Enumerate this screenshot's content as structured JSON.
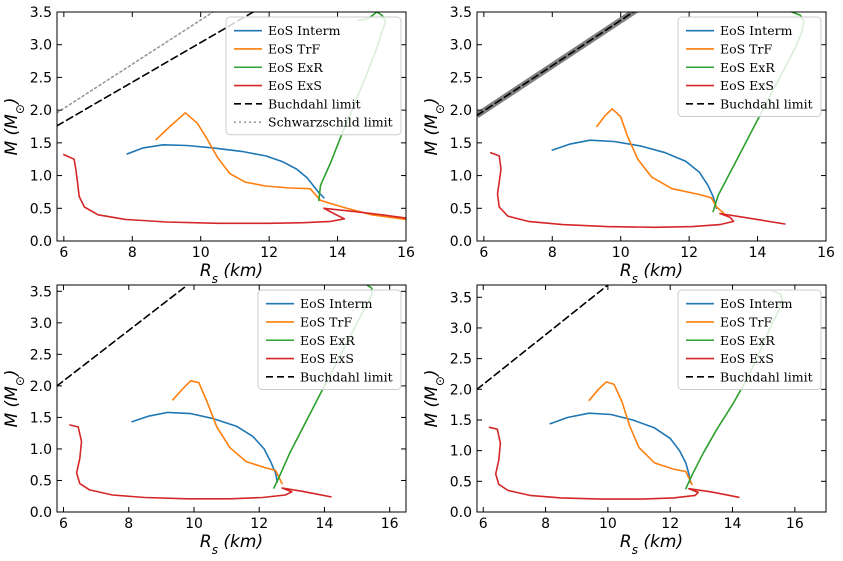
{
  "chart_data": [
    {
      "type": "line",
      "xlabel": "R_s (km)",
      "ylabel": "M (M_⊙)",
      "xlim": [
        5.8,
        16
      ],
      "ylim": [
        0,
        3.5
      ],
      "xticks": [
        6,
        8,
        10,
        12,
        14,
        16
      ],
      "yticks": [
        0.0,
        0.5,
        1.0,
        1.5,
        2.0,
        2.5,
        3.0,
        3.5
      ],
      "legend": "top-right",
      "series": [
        {
          "name": "EoS Interm",
          "color": "#1f77b4",
          "style": "solid",
          "x": [
            7.85,
            8.3,
            8.9,
            9.6,
            10.4,
            11.2,
            11.9,
            12.4,
            12.8,
            13.1,
            13.3,
            13.45,
            13.6
          ],
          "y": [
            1.33,
            1.42,
            1.47,
            1.46,
            1.42,
            1.37,
            1.3,
            1.21,
            1.1,
            0.97,
            0.84,
            0.74,
            0.66
          ]
        },
        {
          "name": "EoS TrF",
          "color": "#ff7f0e",
          "style": "solid",
          "x": [
            8.7,
            9.1,
            9.55,
            9.9,
            10.2,
            10.5,
            10.85,
            11.3,
            11.9,
            12.6,
            13.2,
            13.5,
            14.2,
            15.0,
            16.0
          ],
          "y": [
            1.55,
            1.75,
            1.96,
            1.8,
            1.55,
            1.27,
            1.03,
            0.9,
            0.84,
            0.81,
            0.8,
            0.62,
            0.51,
            0.4,
            0.33
          ]
        },
        {
          "name": "EoS ExR",
          "color": "#2ca02c",
          "style": "solid",
          "x": [
            13.45,
            13.5,
            13.8,
            14.1,
            14.5,
            14.85,
            15.15,
            15.3,
            15.4,
            15.3,
            15.15,
            14.9,
            14.6
          ],
          "y": [
            0.62,
            0.85,
            1.2,
            1.6,
            2.1,
            2.55,
            2.95,
            3.2,
            3.35,
            3.45,
            3.5,
            3.4,
            3.37
          ]
        },
        {
          "name": "EoS ExS",
          "color": "#d62728",
          "style": "solid",
          "x": [
            6.0,
            6.3,
            6.35,
            6.4,
            6.45,
            6.6,
            7.0,
            7.8,
            9.0,
            10.5,
            12.0,
            13.0,
            13.8,
            14.2,
            14.0,
            13.6,
            14.5,
            15.3,
            16.0
          ],
          "y": [
            1.32,
            1.25,
            1.1,
            0.9,
            0.68,
            0.52,
            0.4,
            0.33,
            0.29,
            0.27,
            0.27,
            0.28,
            0.3,
            0.34,
            0.39,
            0.5,
            0.45,
            0.4,
            0.35
          ]
        },
        {
          "name": "Buchdahl limit",
          "color": "#000000",
          "style": "dashed",
          "x": [
            5.8,
            11.8
          ],
          "y": [
            1.76,
            3.58
          ]
        },
        {
          "name": "Schwarzschild limit",
          "color": "#999999",
          "style": "dotted",
          "x": [
            5.8,
            10.6
          ],
          "y": [
            1.96,
            3.58
          ]
        }
      ]
    },
    {
      "type": "line",
      "xlabel": "R_s (km)",
      "ylabel": "M (M_⊙)",
      "xlim": [
        5.8,
        16
      ],
      "ylim": [
        0,
        3.5
      ],
      "xticks": [
        6,
        8,
        10,
        12,
        14,
        16
      ],
      "yticks": [
        0.0,
        0.5,
        1.0,
        1.5,
        2.0,
        2.5,
        3.0,
        3.5
      ],
      "legend": "top-right",
      "series": [
        {
          "name": "EoS Interm",
          "color": "#1f77b4",
          "style": "solid",
          "x": [
            8.0,
            8.5,
            9.1,
            9.8,
            10.6,
            11.3,
            11.9,
            12.3,
            12.55,
            12.7,
            12.8
          ],
          "y": [
            1.39,
            1.48,
            1.54,
            1.52,
            1.45,
            1.35,
            1.22,
            1.05,
            0.85,
            0.68,
            0.5
          ]
        },
        {
          "name": "EoS TrF",
          "color": "#ff7f0e",
          "style": "solid",
          "x": [
            9.3,
            9.55,
            9.75,
            10.0,
            10.2,
            10.5,
            10.9,
            11.5,
            12.3,
            12.65,
            12.8,
            13.0
          ],
          "y": [
            1.75,
            1.92,
            2.02,
            1.9,
            1.6,
            1.25,
            0.98,
            0.8,
            0.71,
            0.66,
            0.52,
            0.43
          ]
        },
        {
          "name": "EoS ExR",
          "color": "#2ca02c",
          "style": "solid",
          "x": [
            12.7,
            12.85,
            13.15,
            13.5,
            13.9,
            14.35,
            14.75,
            15.1,
            15.3,
            15.35,
            15.25,
            15.0
          ],
          "y": [
            0.45,
            0.7,
            1.0,
            1.35,
            1.75,
            2.2,
            2.6,
            2.95,
            3.2,
            3.35,
            3.45,
            3.5
          ]
        },
        {
          "name": "EoS ExS",
          "color": "#d62728",
          "style": "solid",
          "x": [
            6.2,
            6.45,
            6.5,
            6.45,
            6.4,
            6.45,
            6.7,
            7.3,
            8.3,
            9.6,
            11.0,
            12.1,
            12.9,
            13.3,
            13.2,
            12.9,
            13.5,
            14.1,
            14.8
          ],
          "y": [
            1.35,
            1.3,
            1.1,
            0.9,
            0.72,
            0.52,
            0.38,
            0.3,
            0.25,
            0.22,
            0.21,
            0.22,
            0.25,
            0.3,
            0.36,
            0.42,
            0.37,
            0.32,
            0.26
          ]
        },
        {
          "name": "Buchdahl limit",
          "color": "#000000",
          "style": "dashed",
          "x": [
            5.8,
            10.6
          ],
          "y": [
            1.92,
            3.58
          ]
        }
      ]
    },
    {
      "type": "line",
      "xlabel": "R_s (km)",
      "ylabel": "M (M_⊙)",
      "xlim": [
        5.8,
        16.5
      ],
      "ylim": [
        0,
        3.6
      ],
      "xticks": [
        6,
        8,
        10,
        12,
        14,
        16
      ],
      "yticks": [
        0.0,
        0.5,
        1.0,
        1.5,
        2.0,
        2.5,
        3.0,
        3.5
      ],
      "legend": "top-right",
      "series": [
        {
          "name": "EoS Interm",
          "color": "#1f77b4",
          "style": "solid",
          "x": [
            8.1,
            8.6,
            9.2,
            9.9,
            10.6,
            11.3,
            11.8,
            12.15,
            12.35,
            12.5,
            12.55
          ],
          "y": [
            1.43,
            1.52,
            1.58,
            1.56,
            1.48,
            1.36,
            1.2,
            1.0,
            0.8,
            0.62,
            0.48
          ]
        },
        {
          "name": "EoS TrF",
          "color": "#ff7f0e",
          "style": "solid",
          "x": [
            9.35,
            9.65,
            9.9,
            10.15,
            10.4,
            10.7,
            11.1,
            11.6,
            12.2,
            12.5,
            12.7
          ],
          "y": [
            1.78,
            1.95,
            2.08,
            2.05,
            1.75,
            1.35,
            1.02,
            0.8,
            0.7,
            0.66,
            0.45
          ]
        },
        {
          "name": "EoS ExR",
          "color": "#2ca02c",
          "style": "solid",
          "x": [
            12.45,
            12.65,
            12.95,
            13.35,
            13.8,
            14.25,
            14.7,
            15.05,
            15.3,
            15.45,
            15.45,
            15.3
          ],
          "y": [
            0.38,
            0.6,
            0.95,
            1.35,
            1.8,
            2.25,
            2.7,
            3.05,
            3.3,
            3.45,
            3.55,
            3.6
          ]
        },
        {
          "name": "EoS ExS",
          "color": "#d62728",
          "style": "solid",
          "x": [
            6.2,
            6.45,
            6.55,
            6.5,
            6.4,
            6.5,
            6.8,
            7.5,
            8.5,
            9.8,
            11.1,
            12.1,
            12.8,
            13.0,
            12.7,
            13.3,
            13.8,
            14.2
          ],
          "y": [
            1.38,
            1.35,
            1.12,
            0.85,
            0.62,
            0.45,
            0.35,
            0.27,
            0.23,
            0.21,
            0.21,
            0.23,
            0.27,
            0.32,
            0.38,
            0.33,
            0.28,
            0.24
          ]
        },
        {
          "name": "Buchdahl limit",
          "color": "#000000",
          "style": "dashed",
          "x": [
            5.8,
            9.8
          ],
          "y": [
            2.0,
            3.6
          ]
        }
      ]
    },
    {
      "type": "line",
      "xlabel": "R_s (km)",
      "ylabel": "M (M_⊙)",
      "xlim": [
        5.8,
        17
      ],
      "ylim": [
        0,
        3.7
      ],
      "xticks": [
        6,
        8,
        10,
        12,
        14,
        16
      ],
      "yticks": [
        0.0,
        0.5,
        1.0,
        1.5,
        2.0,
        2.5,
        3.0,
        3.5
      ],
      "legend": "top-right",
      "series": [
        {
          "name": "EoS Interm",
          "color": "#1f77b4",
          "style": "solid",
          "x": [
            8.15,
            8.7,
            9.4,
            10.1,
            10.8,
            11.5,
            12.0,
            12.3,
            12.5,
            12.6,
            12.65
          ],
          "y": [
            1.44,
            1.54,
            1.61,
            1.59,
            1.5,
            1.37,
            1.2,
            1.0,
            0.8,
            0.62,
            0.48
          ]
        },
        {
          "name": "EoS TrF",
          "color": "#ff7f0e",
          "style": "solid",
          "x": [
            9.4,
            9.7,
            9.95,
            10.2,
            10.45,
            10.7,
            11.0,
            11.5,
            12.1,
            12.5,
            12.7
          ],
          "y": [
            1.82,
            2.0,
            2.12,
            2.08,
            1.8,
            1.4,
            1.05,
            0.8,
            0.7,
            0.66,
            0.45
          ]
        },
        {
          "name": "EoS ExR",
          "color": "#2ca02c",
          "style": "solid",
          "x": [
            12.5,
            12.7,
            13.05,
            13.5,
            14.0,
            14.5,
            14.9,
            15.25,
            15.5,
            15.6,
            15.55,
            15.3
          ],
          "y": [
            0.38,
            0.6,
            0.95,
            1.35,
            1.75,
            2.2,
            2.65,
            3.05,
            3.3,
            3.45,
            3.55,
            3.6
          ]
        },
        {
          "name": "EoS ExS",
          "color": "#d62728",
          "style": "solid",
          "x": [
            6.2,
            6.45,
            6.55,
            6.5,
            6.4,
            6.5,
            6.8,
            7.5,
            8.5,
            9.8,
            11.1,
            12.1,
            12.8,
            12.9,
            12.6,
            13.3,
            13.8,
            14.2
          ],
          "y": [
            1.38,
            1.35,
            1.12,
            0.85,
            0.62,
            0.45,
            0.35,
            0.27,
            0.23,
            0.21,
            0.21,
            0.23,
            0.27,
            0.32,
            0.38,
            0.33,
            0.28,
            0.24
          ]
        },
        {
          "name": "Buchdahl limit",
          "color": "#000000",
          "style": "dashed",
          "x": [
            5.8,
            10.0
          ],
          "y": [
            2.0,
            3.7
          ]
        }
      ]
    }
  ]
}
